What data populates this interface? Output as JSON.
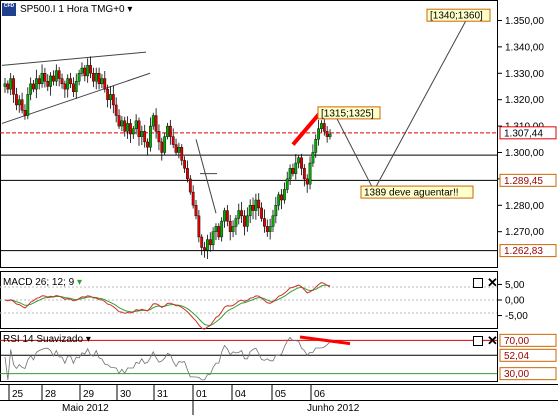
{
  "header": {
    "main_title": "SP500.I 1 Hora TMG+0",
    "macd_title": "MACD 26; 12; 9",
    "rsi_title": "RSI 14 Suavizado",
    "logo_text": "CFD"
  },
  "colors": {
    "candle_up": "#00aa00",
    "candle_down": "#dd0000",
    "resistance_line": "#dd0000",
    "marker": "#ff0000",
    "macd_line": "#d03030",
    "signal_line": "#30a030",
    "rsi_line": "#707070",
    "label_box_bg": "#ffffcc",
    "label_box_border": "#cc6600"
  },
  "chart_data": [
    {
      "type": "candlestick",
      "ylim": [
        1257,
        1357
      ],
      "yticks": [
        "1.350,00",
        "1.340,00",
        "1.330,00",
        "1.320,00",
        "1.310,00",
        "1.300,00",
        "1.290,00",
        "1.280,00",
        "1.270,00"
      ],
      "ytick_values": [
        1350,
        1340,
        1330,
        1320,
        1310,
        1300,
        1290,
        1280,
        1270
      ],
      "price_labels": [
        {
          "text": "1.307,44",
          "value": 1307.44
        },
        {
          "text": "1.289,45",
          "value": 1289.45
        },
        {
          "text": "1.262,83",
          "value": 1262.83
        }
      ],
      "annotations": [
        {
          "text": "[1340;1360]",
          "value": 1352
        },
        {
          "text": "[1315;1325]",
          "value": 1315
        },
        {
          "text": "1389 deve aguentar!!",
          "value": 1285
        }
      ],
      "horizontal_levels": [
        1307.44,
        1299,
        1289.45,
        1262.83
      ],
      "x_day_labels": [
        "25",
        "28",
        "29",
        "30",
        "31",
        "01",
        "04",
        "05",
        "06"
      ],
      "x_month_labels": [
        "Maio 2012",
        "Junho 2012"
      ],
      "close_path": [
        1326,
        1324,
        1328,
        1322,
        1318,
        1320,
        1316,
        1314,
        1322,
        1326,
        1324,
        1328,
        1326,
        1330,
        1327,
        1325,
        1329,
        1327,
        1331,
        1328,
        1326,
        1324,
        1328,
        1326,
        1323,
        1327,
        1330,
        1332,
        1329,
        1333,
        1330,
        1327,
        1330,
        1326,
        1328,
        1324,
        1320,
        1322,
        1318,
        1314,
        1310,
        1312,
        1308,
        1311,
        1307,
        1309,
        1312,
        1306,
        1308,
        1304,
        1302,
        1310,
        1314,
        1308,
        1304,
        1300,
        1306,
        1310,
        1306,
        1303,
        1300,
        1302,
        1297,
        1294,
        1290,
        1285,
        1280,
        1276,
        1268,
        1264,
        1263,
        1267,
        1265,
        1270,
        1272,
        1268,
        1274,
        1278,
        1274,
        1270,
        1272,
        1275,
        1278,
        1276,
        1272,
        1276,
        1280,
        1278,
        1282,
        1279,
        1275,
        1272,
        1270,
        1272,
        1276,
        1280,
        1284,
        1282,
        1286,
        1290,
        1294,
        1292,
        1296,
        1298,
        1294,
        1290,
        1288,
        1296,
        1300,
        1305,
        1309,
        1311,
        1308,
        1306,
        1307
      ]
    },
    {
      "type": "line",
      "name": "MACD 26; 12; 9",
      "yticks": [
        "5,00",
        "0,00",
        "-5,00"
      ],
      "ytick_values": [
        5,
        0,
        -5
      ],
      "ylim": [
        -9,
        9
      ]
    },
    {
      "type": "line",
      "name": "RSI 14 Suavizado",
      "ylim": [
        20,
        80
      ],
      "price_labels": [
        {
          "text": "70,00",
          "value": 70
        },
        {
          "text": "52,04",
          "value": 52.04
        },
        {
          "text": "30,00",
          "value": 30
        }
      ]
    }
  ]
}
